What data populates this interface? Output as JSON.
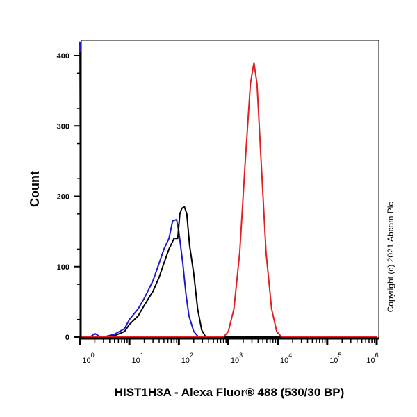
{
  "chart_data": {
    "type": "line",
    "title": "",
    "xlabel": "HIST1H3A - Alexa Fluor® 488 (530/30 BP)",
    "ylabel": "Count",
    "x_scale": "log",
    "xlim": [
      1,
      1000000
    ],
    "ylim": [
      0,
      400
    ],
    "x_tick_labels": [
      {
        "base": "10",
        "exp": "0"
      },
      {
        "base": "10",
        "exp": "1"
      },
      {
        "base": "10",
        "exp": "2"
      },
      {
        "base": "10",
        "exp": "3"
      },
      {
        "base": "10",
        "exp": "4"
      },
      {
        "base": "10",
        "exp": "5"
      },
      {
        "base": "10",
        "exp": "6"
      }
    ],
    "y_ticks": [
      0,
      100,
      200,
      300,
      400
    ],
    "grid": false,
    "legend": "none",
    "annotation": "Copyright (c) 2021 Abcam Plc",
    "series": [
      {
        "color": "#1a1acc",
        "points": [
          [
            1,
            420
          ],
          [
            1.05,
            0
          ],
          [
            1.6,
            0
          ],
          [
            2,
            5
          ],
          [
            2.5,
            1
          ],
          [
            3,
            0
          ],
          [
            5,
            4
          ],
          [
            8,
            12
          ],
          [
            10,
            25
          ],
          [
            15,
            40
          ],
          [
            20,
            55
          ],
          [
            30,
            80
          ],
          [
            40,
            105
          ],
          [
            50,
            125
          ],
          [
            63,
            140
          ],
          [
            75,
            165
          ],
          [
            90,
            167
          ],
          [
            100,
            150
          ],
          [
            120,
            105
          ],
          [
            140,
            60
          ],
          [
            160,
            30
          ],
          [
            200,
            8
          ],
          [
            250,
            0
          ],
          [
            1000000,
            0
          ]
        ]
      },
      {
        "color": "#000000",
        "points": [
          [
            1,
            0
          ],
          [
            3,
            0
          ],
          [
            5,
            2
          ],
          [
            8,
            8
          ],
          [
            10,
            18
          ],
          [
            15,
            30
          ],
          [
            20,
            45
          ],
          [
            30,
            65
          ],
          [
            40,
            85
          ],
          [
            50,
            105
          ],
          [
            63,
            125
          ],
          [
            80,
            140
          ],
          [
            95,
            140
          ],
          [
            105,
            175
          ],
          [
            115,
            183
          ],
          [
            130,
            185
          ],
          [
            145,
            175
          ],
          [
            165,
            130
          ],
          [
            200,
            90
          ],
          [
            240,
            40
          ],
          [
            290,
            10
          ],
          [
            350,
            0
          ],
          [
            1000000,
            0
          ]
        ]
      },
      {
        "color": "#e02020",
        "points": [
          [
            1,
            0
          ],
          [
            800,
            0
          ],
          [
            1000,
            8
          ],
          [
            1300,
            40
          ],
          [
            1700,
            120
          ],
          [
            2200,
            250
          ],
          [
            2800,
            360
          ],
          [
            3300,
            390
          ],
          [
            3800,
            360
          ],
          [
            4600,
            250
          ],
          [
            5800,
            120
          ],
          [
            7500,
            40
          ],
          [
            9500,
            8
          ],
          [
            12000,
            0
          ],
          [
            1000000,
            0
          ]
        ]
      }
    ]
  }
}
